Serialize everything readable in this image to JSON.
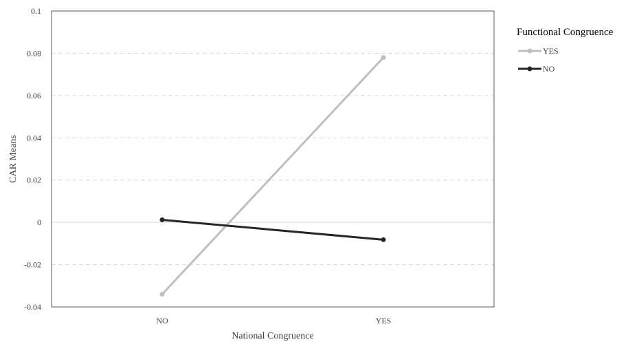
{
  "chart_data": {
    "type": "line",
    "title": "",
    "xlabel": "National Congruence",
    "ylabel": "CAR Means",
    "categories": [
      "NO",
      "YES"
    ],
    "ylim": [
      -0.04,
      0.1
    ],
    "yticks": [
      -0.04,
      -0.02,
      0,
      0.02,
      0.04,
      0.06,
      0.08,
      0.1
    ],
    "ytick_labels": [
      "-0.04",
      "-0.02",
      "0",
      "0.02",
      "0.04",
      "0.06",
      "0.08",
      "0.1"
    ],
    "grid": true,
    "legend_title": "Functional Congruence",
    "legend_position": "right",
    "series": [
      {
        "name": "YES",
        "values": [
          -0.034,
          0.078
        ],
        "color": "#bfbfbf"
      },
      {
        "name": "NO",
        "values": [
          0.0012,
          -0.0082
        ],
        "color": "#262626"
      }
    ]
  }
}
